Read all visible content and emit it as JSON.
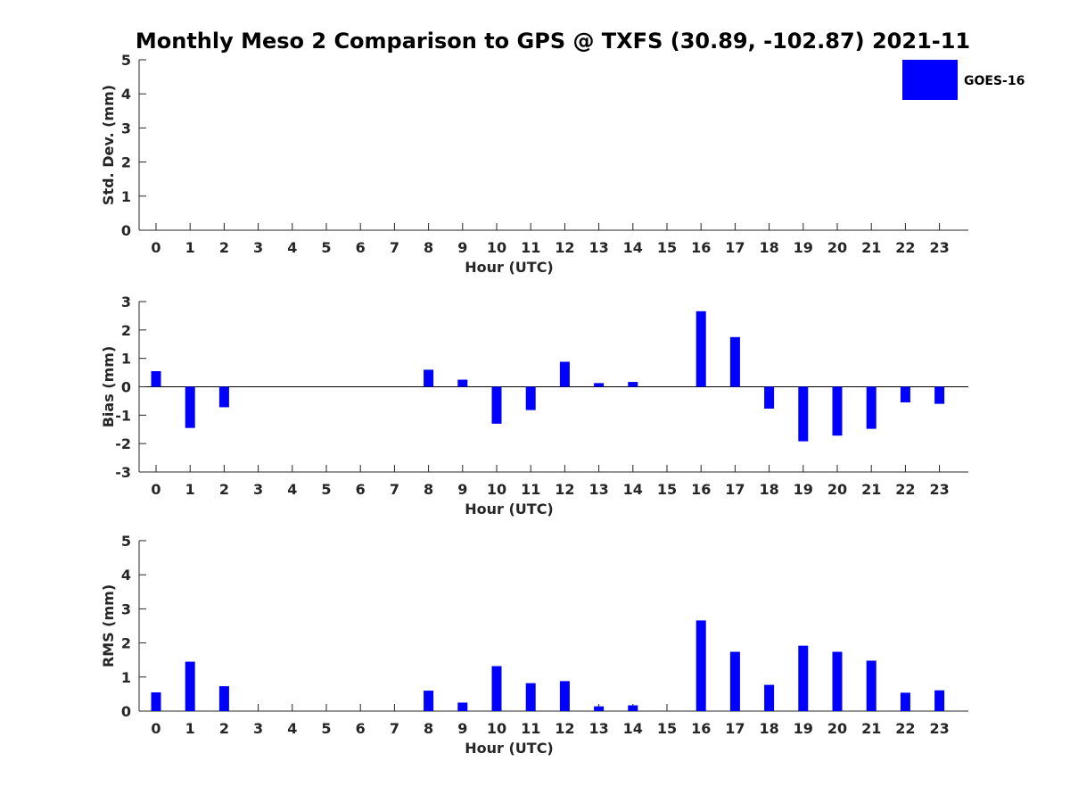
{
  "title": "Monthly Meso 2 Comparison to GPS @ TXFS (30.89, -102.87) 2021-11",
  "legend": {
    "label": "GOES-16",
    "placement": "top-right"
  },
  "colors": {
    "bar": "#0000ff",
    "axis": "#262626"
  },
  "chart_data": [
    {
      "type": "bar",
      "xlabel": "Hour (UTC)",
      "ylabel": "Std. Dev. (mm)",
      "ylim": [
        0,
        5
      ],
      "yticks": [
        0,
        1,
        2,
        3,
        4,
        5
      ],
      "categories": [
        "0",
        "1",
        "2",
        "3",
        "4",
        "5",
        "6",
        "7",
        "8",
        "9",
        "10",
        "11",
        "12",
        "13",
        "14",
        "15",
        "16",
        "17",
        "18",
        "19",
        "20",
        "21",
        "22",
        "23"
      ],
      "series": [
        {
          "name": "GOES-16",
          "values": [
            null,
            null,
            null,
            null,
            null,
            null,
            null,
            null,
            null,
            null,
            null,
            null,
            null,
            null,
            null,
            null,
            null,
            null,
            null,
            null,
            null,
            null,
            null,
            null
          ]
        }
      ],
      "grid": false
    },
    {
      "type": "bar",
      "xlabel": "Hour (UTC)",
      "ylabel": "Bias (mm)",
      "ylim": [
        -3,
        3
      ],
      "yticks": [
        -3,
        -2,
        -1,
        0,
        1,
        2,
        3
      ],
      "categories": [
        "0",
        "1",
        "2",
        "3",
        "4",
        "5",
        "6",
        "7",
        "8",
        "9",
        "10",
        "11",
        "12",
        "13",
        "14",
        "15",
        "16",
        "17",
        "18",
        "19",
        "20",
        "21",
        "22",
        "23"
      ],
      "series": [
        {
          "name": "GOES-16",
          "values": [
            0.55,
            -1.45,
            -0.72,
            null,
            null,
            null,
            null,
            null,
            0.6,
            0.25,
            -1.3,
            -0.82,
            0.88,
            0.13,
            0.17,
            null,
            2.66,
            1.75,
            -0.77,
            -1.92,
            -1.72,
            -1.48,
            -0.55,
            -0.6
          ]
        }
      ],
      "grid": false
    },
    {
      "type": "bar",
      "xlabel": "Hour (UTC)",
      "ylabel": "RMS (mm)",
      "ylim": [
        0,
        5
      ],
      "yticks": [
        0,
        1,
        2,
        3,
        4,
        5
      ],
      "categories": [
        "0",
        "1",
        "2",
        "3",
        "4",
        "5",
        "6",
        "7",
        "8",
        "9",
        "10",
        "11",
        "12",
        "13",
        "14",
        "15",
        "16",
        "17",
        "18",
        "19",
        "20",
        "21",
        "22",
        "23"
      ],
      "series": [
        {
          "name": "GOES-16",
          "values": [
            0.55,
            1.45,
            0.73,
            null,
            null,
            null,
            null,
            null,
            0.6,
            0.25,
            1.32,
            0.82,
            0.88,
            0.14,
            0.17,
            null,
            2.66,
            1.74,
            0.77,
            1.92,
            1.74,
            1.48,
            0.54,
            0.61
          ]
        }
      ],
      "grid": false
    }
  ]
}
